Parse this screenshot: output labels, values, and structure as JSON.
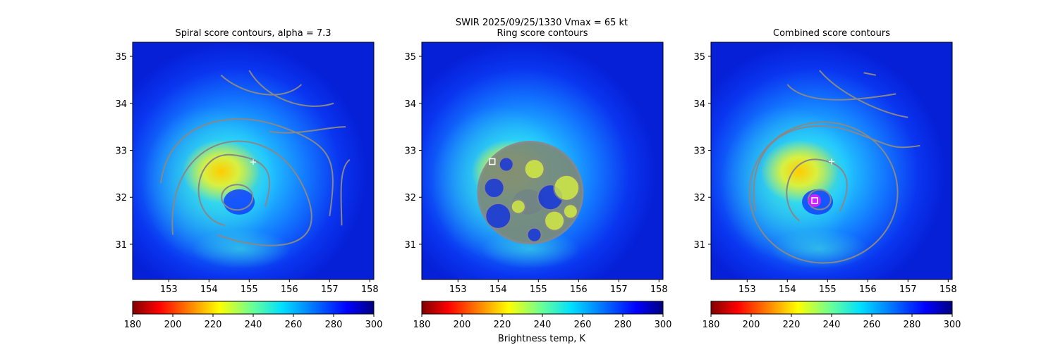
{
  "figure": {
    "suptitle_line1": "SWIR  2025/09/25/1330    Vmax = 65 kt",
    "colorbar_label": "Brightness temp, K"
  },
  "chart_data": [
    {
      "type": "heatmap",
      "title": "Spiral score contours, alpha =  7.3",
      "xlabel": "",
      "ylabel": "",
      "xlim": [
        152.1,
        158.1
      ],
      "ylim": [
        30.25,
        35.3
      ],
      "xticks": [
        153,
        154,
        155,
        156,
        157,
        158
      ],
      "yticks": [
        31,
        32,
        33,
        34,
        35
      ],
      "colorbar": {
        "cmap": "jet_r",
        "range": [
          180,
          300
        ],
        "ticks": [
          180,
          200,
          220,
          240,
          260,
          280,
          300
        ]
      },
      "markers": [
        {
          "kind": "cross",
          "x": 155.1,
          "y": 32.75,
          "color": "#ffffff"
        }
      ],
      "contour_color": "#888888"
    },
    {
      "type": "heatmap",
      "title": "Ring score contours",
      "xlabel": "",
      "ylabel": "",
      "xlim": [
        152.1,
        158.1
      ],
      "ylim": [
        30.25,
        35.3
      ],
      "xticks": [
        153,
        154,
        155,
        156,
        157,
        158
      ],
      "yticks": [
        31,
        32,
        33,
        34,
        35
      ],
      "colorbar": {
        "cmap": "jet_r",
        "range": [
          180,
          300
        ],
        "ticks": [
          180,
          200,
          220,
          240,
          260,
          280,
          300
        ]
      },
      "markers": [
        {
          "kind": "square",
          "x": 153.85,
          "y": 32.76,
          "color": "#ffffff"
        }
      ],
      "contour_color": "#888888"
    },
    {
      "type": "heatmap",
      "title": "Combined score contours",
      "xlabel": "",
      "ylabel": "",
      "xlim": [
        152.1,
        158.1
      ],
      "ylim": [
        30.25,
        35.3
      ],
      "xticks": [
        153,
        154,
        155,
        156,
        157,
        158
      ],
      "yticks": [
        31,
        32,
        33,
        34,
        35
      ],
      "colorbar": {
        "cmap": "jet_r",
        "range": [
          180,
          300
        ],
        "ticks": [
          180,
          200,
          220,
          240,
          260,
          280,
          300
        ]
      },
      "markers": [
        {
          "kind": "cross",
          "x": 155.1,
          "y": 32.76,
          "color": "#ffffff"
        },
        {
          "kind": "square",
          "x": 154.68,
          "y": 31.93,
          "color": "#ffffff"
        }
      ],
      "contour_color": "#888888"
    }
  ]
}
